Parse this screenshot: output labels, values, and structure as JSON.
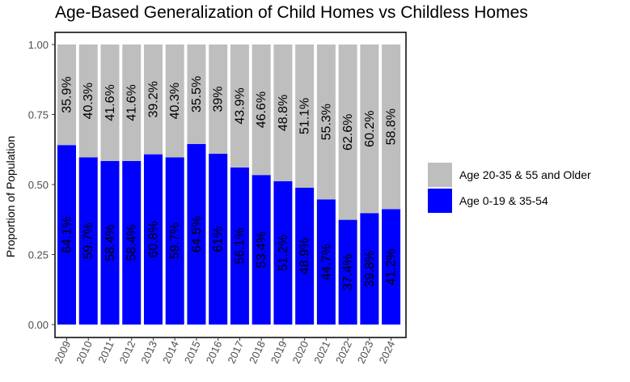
{
  "chart_data": {
    "type": "bar",
    "stacked": true,
    "title": "Age-Based Generalization of Child Homes vs Childless Homes",
    "xlabel": "",
    "ylabel": "Proportion of Population",
    "ylim": [
      0,
      1
    ],
    "yticks": [
      "0.00",
      "0.25",
      "0.50",
      "0.75",
      "1.00"
    ],
    "categories": [
      "2009",
      "2010",
      "2011",
      "2012",
      "2013",
      "2014",
      "2015",
      "2016",
      "2017",
      "2018",
      "2019",
      "2020",
      "2021",
      "2022",
      "2023",
      "2024"
    ],
    "series": [
      {
        "name": "Age 0-19 & 35-54",
        "color": "#0000ff",
        "values": [
          0.641,
          0.597,
          0.584,
          0.584,
          0.608,
          0.597,
          0.645,
          0.61,
          0.561,
          0.534,
          0.512,
          0.489,
          0.447,
          0.374,
          0.398,
          0.412
        ],
        "labels": [
          "64.1%",
          "59.7%",
          "58.4%",
          "58.4%",
          "60.8%",
          "59.7%",
          "64.5%",
          "61%",
          "56.1%",
          "53.4%",
          "51.2%",
          "48.9%",
          "44.7%",
          "37.4%",
          "39.8%",
          "41.2%"
        ]
      },
      {
        "name": "Age 20-35 & 55 and Older",
        "color": "#bebebe",
        "values": [
          0.359,
          0.403,
          0.416,
          0.416,
          0.392,
          0.403,
          0.355,
          0.39,
          0.439,
          0.466,
          0.488,
          0.511,
          0.553,
          0.626,
          0.602,
          0.588
        ],
        "labels": [
          "35.9%",
          "40.3%",
          "41.6%",
          "41.6%",
          "39.2%",
          "40.3%",
          "35.5%",
          "39%",
          "43.9%",
          "46.6%",
          "48.8%",
          "51.1%",
          "55.3%",
          "62.6%",
          "60.2%",
          "58.8%"
        ]
      }
    ],
    "legend_position": "right"
  }
}
